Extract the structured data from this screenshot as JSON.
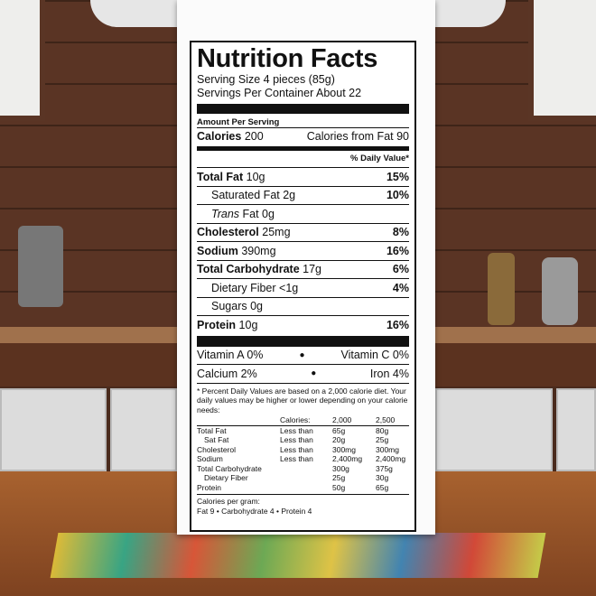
{
  "label": {
    "title": "Nutrition Facts",
    "serving_size": "Serving Size 4 pieces (85g)",
    "servings_per_container": "Servings Per Container  About 22",
    "amount_per_serving": "Amount Per Serving",
    "calories_label": "Calories",
    "calories_value": "200",
    "calories_from_fat": "Calories from Fat 90",
    "daily_value_header": "% Daily Value*",
    "nutrients": [
      {
        "name": "Total Fat",
        "amount": "10g",
        "dv": "15%",
        "bold": true,
        "indent": false
      },
      {
        "name": "Saturated Fat",
        "amount": "2g",
        "dv": "10%",
        "bold": false,
        "indent": true
      },
      {
        "name": "Trans",
        "amount": "Fat 0g",
        "dv": "",
        "bold": false,
        "indent": true
      },
      {
        "name": "Cholesterol",
        "amount": "25mg",
        "dv": "8%",
        "bold": true,
        "indent": false
      },
      {
        "name": "Sodium",
        "amount": "390mg",
        "dv": "16%",
        "bold": true,
        "indent": false
      },
      {
        "name": "Total Carbohydrate",
        "amount": "17g",
        "dv": "6%",
        "bold": true,
        "indent": false
      },
      {
        "name": "Dietary Fiber",
        "amount": "<1g",
        "dv": "4%",
        "bold": false,
        "indent": true
      },
      {
        "name": "Sugars",
        "amount": "0g",
        "dv": "",
        "bold": false,
        "indent": true
      },
      {
        "name": "Protein",
        "amount": "10g",
        "dv": "16%",
        "bold": true,
        "indent": false
      }
    ],
    "vitamins": [
      {
        "left": "Vitamin A 0%",
        "right": "Vitamin C 0%"
      },
      {
        "left": "Calcium 2%",
        "right": "Iron 4%"
      }
    ],
    "footnote": "* Percent Daily Values are based on a 2,000 calorie diet. Your daily values may be higher or lower depending on your calorie needs:",
    "table_header": [
      "",
      "Calories:",
      "2,000",
      "2,500"
    ],
    "table_rows": [
      [
        "Total Fat",
        "Less than",
        "65g",
        "80g"
      ],
      [
        "Sat Fat",
        "Less than",
        "20g",
        "25g"
      ],
      [
        "Cholesterol",
        "Less than",
        "300mg",
        "300mg"
      ],
      [
        "Sodium",
        "Less than",
        "2,400mg",
        "2,400mg"
      ],
      [
        "Total Carbohydrate",
        "",
        "300g",
        "375g"
      ],
      [
        "Dietary Fiber",
        "",
        "25g",
        "30g"
      ],
      [
        "Protein",
        "",
        "50g",
        "65g"
      ]
    ],
    "calories_per_gram": "Calories per gram:",
    "calories_per_gram_values": "Fat 9 • Carbohydrate 4 • Protein 4"
  }
}
